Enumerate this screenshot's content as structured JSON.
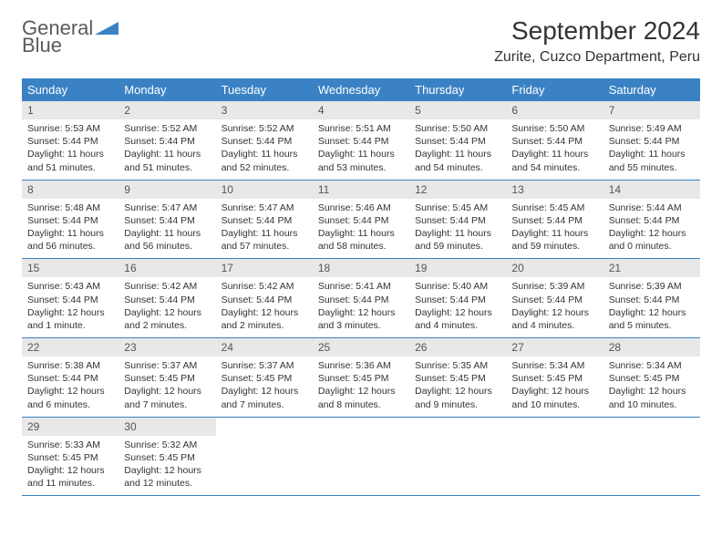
{
  "logo": {
    "text1": "General",
    "text2": "Blue"
  },
  "title": "September 2024",
  "location": "Zurite, Cuzco Department, Peru",
  "colors": {
    "header_bg": "#3b82c4",
    "header_text": "#ffffff",
    "daynum_bg": "#e8e8e8",
    "border": "#3b82c4",
    "logo_gray": "#5a5a5a",
    "logo_blue": "#3b82c4"
  },
  "weekdays": [
    "Sunday",
    "Monday",
    "Tuesday",
    "Wednesday",
    "Thursday",
    "Friday",
    "Saturday"
  ],
  "weeks": [
    [
      {
        "n": "1",
        "sr": "Sunrise: 5:53 AM",
        "ss": "Sunset: 5:44 PM",
        "dl": "Daylight: 11 hours and 51 minutes."
      },
      {
        "n": "2",
        "sr": "Sunrise: 5:52 AM",
        "ss": "Sunset: 5:44 PM",
        "dl": "Daylight: 11 hours and 51 minutes."
      },
      {
        "n": "3",
        "sr": "Sunrise: 5:52 AM",
        "ss": "Sunset: 5:44 PM",
        "dl": "Daylight: 11 hours and 52 minutes."
      },
      {
        "n": "4",
        "sr": "Sunrise: 5:51 AM",
        "ss": "Sunset: 5:44 PM",
        "dl": "Daylight: 11 hours and 53 minutes."
      },
      {
        "n": "5",
        "sr": "Sunrise: 5:50 AM",
        "ss": "Sunset: 5:44 PM",
        "dl": "Daylight: 11 hours and 54 minutes."
      },
      {
        "n": "6",
        "sr": "Sunrise: 5:50 AM",
        "ss": "Sunset: 5:44 PM",
        "dl": "Daylight: 11 hours and 54 minutes."
      },
      {
        "n": "7",
        "sr": "Sunrise: 5:49 AM",
        "ss": "Sunset: 5:44 PM",
        "dl": "Daylight: 11 hours and 55 minutes."
      }
    ],
    [
      {
        "n": "8",
        "sr": "Sunrise: 5:48 AM",
        "ss": "Sunset: 5:44 PM",
        "dl": "Daylight: 11 hours and 56 minutes."
      },
      {
        "n": "9",
        "sr": "Sunrise: 5:47 AM",
        "ss": "Sunset: 5:44 PM",
        "dl": "Daylight: 11 hours and 56 minutes."
      },
      {
        "n": "10",
        "sr": "Sunrise: 5:47 AM",
        "ss": "Sunset: 5:44 PM",
        "dl": "Daylight: 11 hours and 57 minutes."
      },
      {
        "n": "11",
        "sr": "Sunrise: 5:46 AM",
        "ss": "Sunset: 5:44 PM",
        "dl": "Daylight: 11 hours and 58 minutes."
      },
      {
        "n": "12",
        "sr": "Sunrise: 5:45 AM",
        "ss": "Sunset: 5:44 PM",
        "dl": "Daylight: 11 hours and 59 minutes."
      },
      {
        "n": "13",
        "sr": "Sunrise: 5:45 AM",
        "ss": "Sunset: 5:44 PM",
        "dl": "Daylight: 11 hours and 59 minutes."
      },
      {
        "n": "14",
        "sr": "Sunrise: 5:44 AM",
        "ss": "Sunset: 5:44 PM",
        "dl": "Daylight: 12 hours and 0 minutes."
      }
    ],
    [
      {
        "n": "15",
        "sr": "Sunrise: 5:43 AM",
        "ss": "Sunset: 5:44 PM",
        "dl": "Daylight: 12 hours and 1 minute."
      },
      {
        "n": "16",
        "sr": "Sunrise: 5:42 AM",
        "ss": "Sunset: 5:44 PM",
        "dl": "Daylight: 12 hours and 2 minutes."
      },
      {
        "n": "17",
        "sr": "Sunrise: 5:42 AM",
        "ss": "Sunset: 5:44 PM",
        "dl": "Daylight: 12 hours and 2 minutes."
      },
      {
        "n": "18",
        "sr": "Sunrise: 5:41 AM",
        "ss": "Sunset: 5:44 PM",
        "dl": "Daylight: 12 hours and 3 minutes."
      },
      {
        "n": "19",
        "sr": "Sunrise: 5:40 AM",
        "ss": "Sunset: 5:44 PM",
        "dl": "Daylight: 12 hours and 4 minutes."
      },
      {
        "n": "20",
        "sr": "Sunrise: 5:39 AM",
        "ss": "Sunset: 5:44 PM",
        "dl": "Daylight: 12 hours and 4 minutes."
      },
      {
        "n": "21",
        "sr": "Sunrise: 5:39 AM",
        "ss": "Sunset: 5:44 PM",
        "dl": "Daylight: 12 hours and 5 minutes."
      }
    ],
    [
      {
        "n": "22",
        "sr": "Sunrise: 5:38 AM",
        "ss": "Sunset: 5:44 PM",
        "dl": "Daylight: 12 hours and 6 minutes."
      },
      {
        "n": "23",
        "sr": "Sunrise: 5:37 AM",
        "ss": "Sunset: 5:45 PM",
        "dl": "Daylight: 12 hours and 7 minutes."
      },
      {
        "n": "24",
        "sr": "Sunrise: 5:37 AM",
        "ss": "Sunset: 5:45 PM",
        "dl": "Daylight: 12 hours and 7 minutes."
      },
      {
        "n": "25",
        "sr": "Sunrise: 5:36 AM",
        "ss": "Sunset: 5:45 PM",
        "dl": "Daylight: 12 hours and 8 minutes."
      },
      {
        "n": "26",
        "sr": "Sunrise: 5:35 AM",
        "ss": "Sunset: 5:45 PM",
        "dl": "Daylight: 12 hours and 9 minutes."
      },
      {
        "n": "27",
        "sr": "Sunrise: 5:34 AM",
        "ss": "Sunset: 5:45 PM",
        "dl": "Daylight: 12 hours and 10 minutes."
      },
      {
        "n": "28",
        "sr": "Sunrise: 5:34 AM",
        "ss": "Sunset: 5:45 PM",
        "dl": "Daylight: 12 hours and 10 minutes."
      }
    ],
    [
      {
        "n": "29",
        "sr": "Sunrise: 5:33 AM",
        "ss": "Sunset: 5:45 PM",
        "dl": "Daylight: 12 hours and 11 minutes."
      },
      {
        "n": "30",
        "sr": "Sunrise: 5:32 AM",
        "ss": "Sunset: 5:45 PM",
        "dl": "Daylight: 12 hours and 12 minutes."
      },
      {
        "n": "",
        "sr": "",
        "ss": "",
        "dl": "",
        "empty": true
      },
      {
        "n": "",
        "sr": "",
        "ss": "",
        "dl": "",
        "empty": true
      },
      {
        "n": "",
        "sr": "",
        "ss": "",
        "dl": "",
        "empty": true
      },
      {
        "n": "",
        "sr": "",
        "ss": "",
        "dl": "",
        "empty": true
      },
      {
        "n": "",
        "sr": "",
        "ss": "",
        "dl": "",
        "empty": true
      }
    ]
  ]
}
